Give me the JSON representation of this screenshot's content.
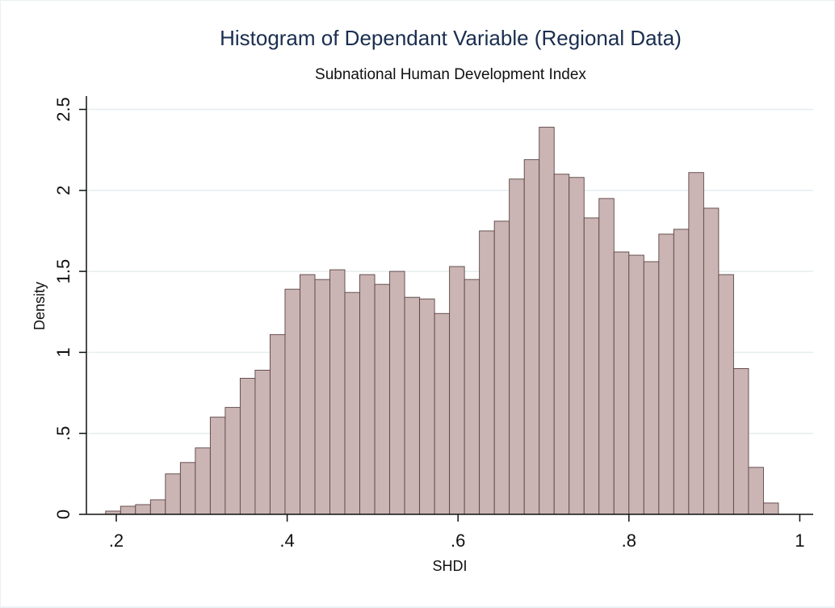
{
  "chart_data": {
    "type": "bar",
    "title": "Histogram of Dependant Variable (Regional Data)",
    "subtitle": "Subnational Human Development Index",
    "xlabel": "SHDI",
    "ylabel": "Density",
    "xlim": [
      0.17,
      1.0
    ],
    "ylim": [
      0,
      2.5
    ],
    "xticks": [
      0.2,
      0.4,
      0.6,
      0.8,
      1.0
    ],
    "xtick_labels": [
      ".2",
      ".4",
      ".6",
      ".8",
      "1"
    ],
    "yticks": [
      0,
      0.5,
      1,
      1.5,
      2,
      2.5
    ],
    "ytick_labels": [
      "0",
      ".5",
      "1",
      "1.5",
      "2",
      "2.5"
    ],
    "grid": true,
    "bin_start": 0.1875,
    "bin_width": 0.0175,
    "values": [
      0.02,
      0.05,
      0.06,
      0.09,
      0.25,
      0.32,
      0.41,
      0.6,
      0.66,
      0.84,
      0.89,
      1.11,
      1.39,
      1.48,
      1.45,
      1.51,
      1.37,
      1.48,
      1.42,
      1.5,
      1.34,
      1.33,
      1.24,
      1.53,
      1.45,
      1.75,
      1.81,
      2.07,
      2.19,
      2.39,
      2.1,
      2.08,
      1.83,
      1.95,
      1.62,
      1.6,
      1.56,
      1.73,
      1.76,
      2.11,
      1.89,
      1.48,
      0.9,
      0.29,
      0.07
    ],
    "bar_fill": "#cbb4b4",
    "bar_stroke": "#5b4444",
    "grid_color": "#e6eeef",
    "title_color": "#1a2e4f"
  }
}
